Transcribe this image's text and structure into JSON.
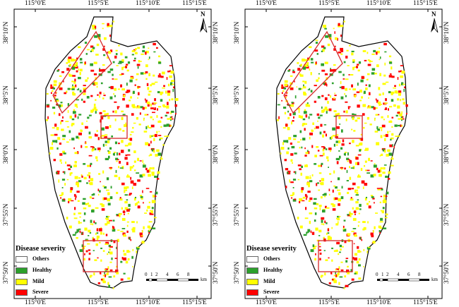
{
  "maps": [
    {
      "id": "left",
      "top_lon_labels": [
        "115°0'E",
        "115°5'E",
        "115°10'E",
        "115°15'E"
      ],
      "bottom_lon_labels": [
        "115°0'E",
        "115°5'E",
        "115°10'E",
        "115°15'E"
      ],
      "left_lat_labels": [
        "38°10'N",
        "38°5'N",
        "38°0'N",
        "37°55'N",
        "37°50'N"
      ],
      "right_lat_labels": [
        "38°10'N",
        "38°5'N",
        "38°0'N",
        "37°55'N",
        "37°50'N"
      ]
    },
    {
      "id": "right",
      "top_lon_labels": [
        "115°0'E",
        "115°5'E",
        "115°10'E",
        "115°15'E"
      ],
      "bottom_lon_labels": [
        "115°0'E",
        "115°5'E",
        "115°10'E",
        "115°15'E"
      ],
      "left_lat_labels": [
        "38°10'N",
        "38°5'N",
        "38°0'N",
        "37°55'N",
        "37°50'N"
      ],
      "right_lat_labels": [
        "38°10'N",
        "38°5'N",
        "38°0'N",
        "37°55'N",
        "37°50'N"
      ]
    }
  ],
  "legend": {
    "title": "Disease severity",
    "items": [
      {
        "label": "Others",
        "color": "#ffffff"
      },
      {
        "label": "Healthy",
        "color": "#2ca02c"
      },
      {
        "label": "Mild",
        "color": "#ffff00"
      },
      {
        "label": "Severe",
        "color": "#ff0000"
      }
    ]
  },
  "scale_bar": {
    "ticks": [
      "0",
      "1",
      "2",
      "4",
      "6",
      "8"
    ],
    "unit": "km"
  },
  "north_arrow": {
    "label": "N"
  }
}
